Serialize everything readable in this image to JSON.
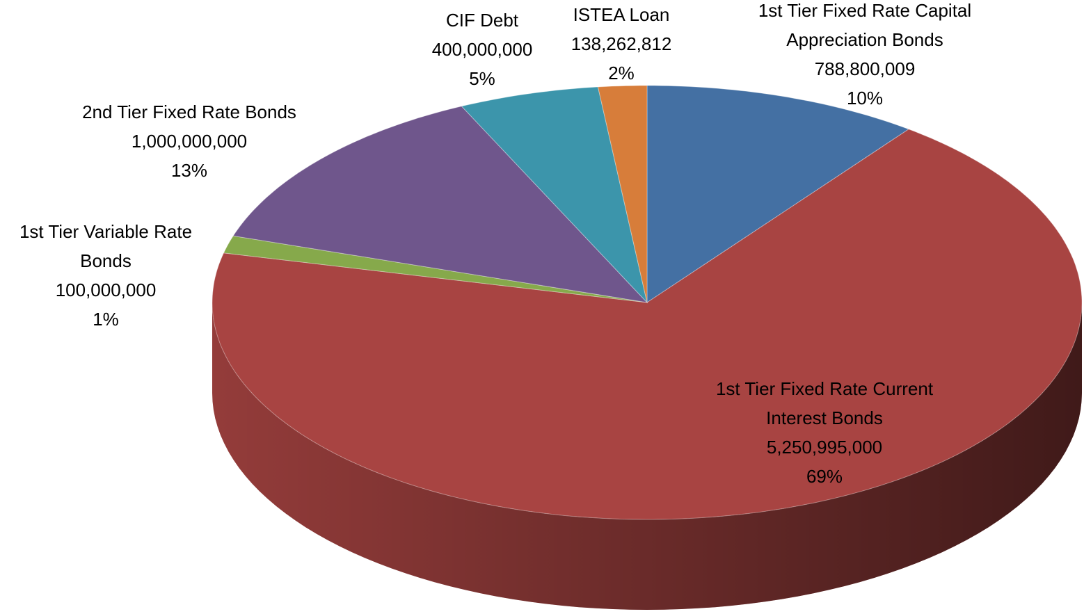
{
  "chart_data": {
    "type": "pie3d",
    "categories": [
      "1st Tier Fixed Rate Capital Appreciation Bonds",
      "1st Tier Fixed Rate Current Interest Bonds",
      "1st Tier Variable Rate Bonds",
      "2nd Tier Fixed Rate Bonds",
      "CIF Debt",
      "ISTEA Loan"
    ],
    "values": [
      788800009,
      5250995000,
      100000000,
      1000000000,
      400000000,
      138262812
    ],
    "value_labels": [
      "788,800,009",
      "5,250,995,000",
      "100,000,000",
      "1,000,000,000",
      "400,000,000",
      "138,262,812"
    ],
    "percent_labels": [
      "10%",
      "69%",
      "1%",
      "13%",
      "5%",
      "2%"
    ],
    "colors": [
      "#4470a3",
      "#a84442",
      "#86a94b",
      "#6f568c",
      "#3c95ab",
      "#d77d3a"
    ]
  }
}
